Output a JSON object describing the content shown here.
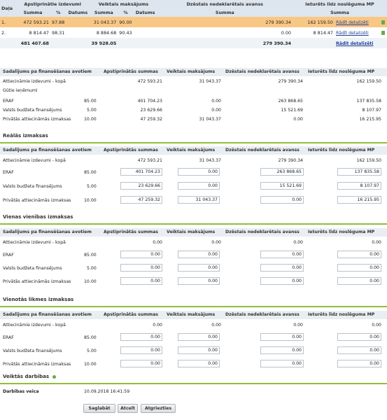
{
  "top": {
    "col_dala": "Daļa",
    "col_apstip": "Apstiprinātie izdevumi",
    "col_veiktais": "Veiktais maksājums",
    "col_dzestais": "Dzēstais nedeklarētais avanss",
    "col_ieturets": "Ieturēts līdz noslēguma MP",
    "sub_summa": "Summa",
    "sub_pct": "%",
    "sub_datums": "Datums",
    "rows": [
      {
        "dala": "1.",
        "apst": "472 593.21",
        "pct": "97.88",
        "veikt": "31 043.37",
        "vpct": "90.00",
        "dz": "279 390.34",
        "iet": "162 159.50",
        "link": "Rādīt detalizēti"
      },
      {
        "dala": "2.",
        "apst": "8 814.47",
        "pct": "98.31",
        "veikt": "8 884.68",
        "vpct": "90.43",
        "dz": "0.00",
        "iet": "8 814.47",
        "link": "Rādīt detalizēti"
      }
    ],
    "total": {
      "apst": "481 407.68",
      "veikt": "39 928.05",
      "dz": "279 390.34",
      "link": "Rādīt detalizēti"
    }
  },
  "headers": {
    "h1": "Sadalījums pa finansēšanas avotiem",
    "h2": "Apstiprinātās summas",
    "h3": "Veiktais maksājums",
    "h4": "Dzēstais nedeklarētais avanss",
    "h5": "Ieturēts līdz noslēguma MP"
  },
  "labels": {
    "attiec": "Attiecināmie izdevumi - kopā",
    "gutie": "Gūtie ieņēmumi",
    "eraf": "ERAF",
    "valsts": "Valsts budžeta finansējums",
    "priv": "Privātās attiecināmās izmaksas"
  },
  "section0": {
    "rows": [
      {
        "pct": "",
        "a": "472 593.21",
        "b": "31 043.37",
        "c": "279 390.34",
        "d": "162 159.50"
      },
      {
        "pct": "85.00",
        "a": "401 704.23",
        "b": "0.00",
        "c": "263 868.65",
        "d": "137 835.58"
      },
      {
        "pct": "5.00",
        "a": "23 629.66",
        "b": "0.00",
        "c": "15 521.69",
        "d": "8 107.97"
      },
      {
        "pct": "10.00",
        "a": "47 259.32",
        "b": "31 043.37",
        "c": "0.00",
        "d": "16 215.95"
      }
    ]
  },
  "section1": {
    "title": "Reālās izmaksas",
    "total": {
      "a": "472 593.21",
      "b": "31 043.37",
      "c": "279 390.34",
      "d": "162 159.50"
    },
    "rows": [
      {
        "pct": "85.00",
        "a": "401 704.23",
        "b": "0.00",
        "c": "263 868.65",
        "d": "137 835.58"
      },
      {
        "pct": "5.00",
        "a": "23 629.66",
        "b": "0.00",
        "c": "15 521.69",
        "d": "8 107.97"
      },
      {
        "pct": "10.00",
        "a": "47 259.32",
        "b": "31 043.37",
        "c": "0.00",
        "d": "16 215.95"
      }
    ]
  },
  "section2": {
    "title": "Vienas vienības izmaksas",
    "total": {
      "a": "0.00",
      "b": "0.00",
      "c": "0.00",
      "d": "0.00"
    },
    "rows": [
      {
        "pct": "85.00",
        "a": "0.00",
        "b": "0.00",
        "c": "0.00",
        "d": "0.00"
      },
      {
        "pct": "5.00",
        "a": "0.00",
        "b": "0.00",
        "c": "0.00",
        "d": "0.00"
      },
      {
        "pct": "10.00",
        "a": "0.00",
        "b": "0.00",
        "c": "0.00",
        "d": "0.00"
      }
    ]
  },
  "section3": {
    "title": "Vienotās likmes izmaksas",
    "total": {
      "a": "0.00",
      "b": "0.00",
      "c": "0.00",
      "d": "0.00"
    },
    "rows": [
      {
        "pct": "85.00",
        "a": "0.00",
        "b": "0.00",
        "c": "0.00",
        "d": "0.00"
      },
      {
        "pct": "5.00",
        "a": "0.00",
        "b": "0.00",
        "c": "0.00",
        "d": "0.00"
      },
      {
        "pct": "10.00",
        "a": "0.00",
        "b": "0.00",
        "c": "0.00",
        "d": "0.00"
      }
    ]
  },
  "actions": {
    "title": "Veiktās darbības",
    "label": "Darbības veica",
    "datetime": "10.09.2018 16:41:59",
    "save": "Saglabāt",
    "cancel": "Atcelt",
    "back": "Atgriezties"
  }
}
